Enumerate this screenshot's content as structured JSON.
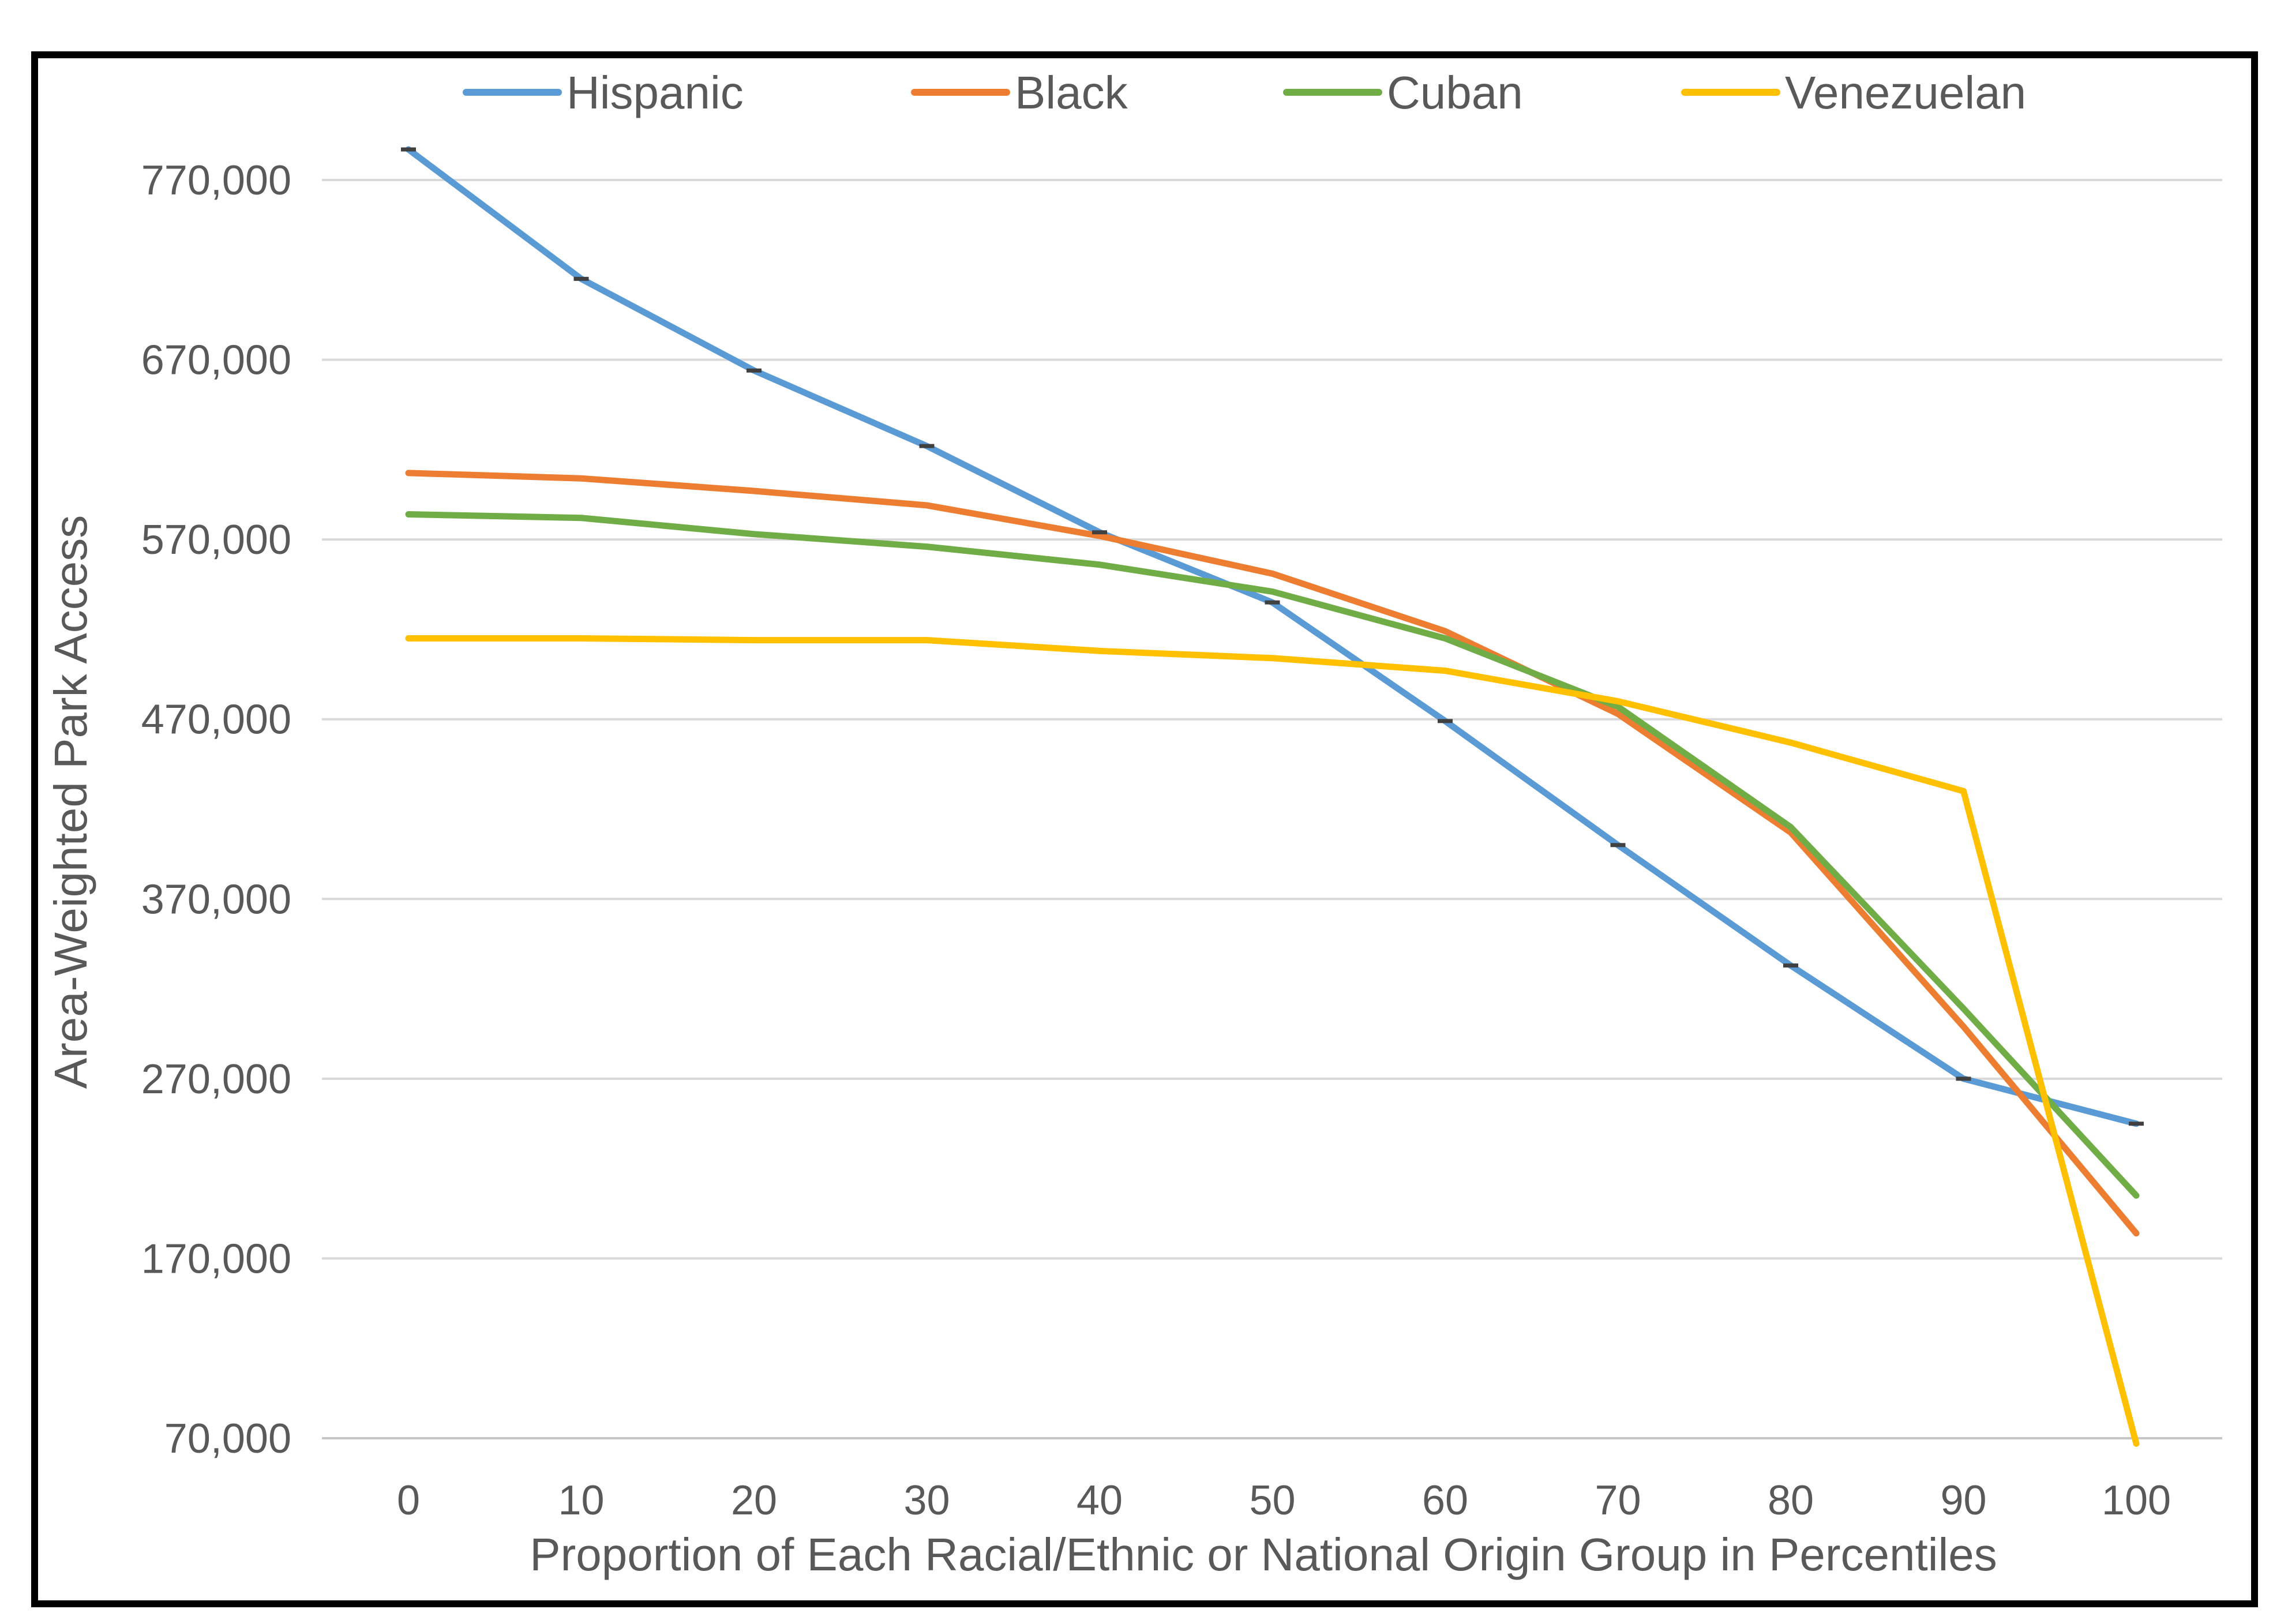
{
  "chart": {
    "frame_color": "#000000",
    "background_color": "#ffffff",
    "text_color": "#595959",
    "gridline_color": "#d9d9d9",
    "axisline_color": "#c6c6c6",
    "marker_color": "#404040"
  },
  "chart_data": {
    "type": "line",
    "title": "",
    "xlabel": "Proportion of Each Racial/Ethnic or National Origin Group in Percentiles",
    "ylabel": "Area-Weighted Park Access",
    "x": [
      0,
      10,
      20,
      30,
      40,
      50,
      60,
      70,
      80,
      90,
      100
    ],
    "xtick_labels": [
      "0",
      "10",
      "20",
      "30",
      "40",
      "50",
      "60",
      "70",
      "80",
      "90",
      "100"
    ],
    "ylim": [
      70000,
      770000
    ],
    "ytick_step": 100000,
    "yticks": [
      70000,
      170000,
      270000,
      370000,
      470000,
      570000,
      670000,
      770000
    ],
    "ytick_labels": [
      "70,000",
      "170,000",
      "270,000",
      "370,000",
      "470,000",
      "570,000",
      "670,000",
      "770,000"
    ],
    "grid": true,
    "legend_position": "top",
    "series": [
      {
        "name": "Hispanic",
        "color": "#5B9BD5",
        "marker": "dash",
        "values": [
          787000,
          715000,
          664000,
          622000,
          574000,
          535000,
          469000,
          400000,
          333000,
          270000,
          245000
        ]
      },
      {
        "name": "Black",
        "color": "#ED7D31",
        "marker": "none",
        "values": [
          607000,
          604000,
          597000,
          589000,
          572000,
          551000,
          519000,
          473000,
          407000,
          299000,
          184000
        ]
      },
      {
        "name": "Cuban",
        "color": "#70AD47",
        "marker": "none",
        "values": [
          584000,
          582000,
          573000,
          566000,
          556000,
          541000,
          515000,
          477000,
          410000,
          309000,
          205000
        ]
      },
      {
        "name": "Venezuelan",
        "color": "#FFC000",
        "marker": "none",
        "values": [
          515000,
          515000,
          514000,
          514000,
          508000,
          504000,
          497000,
          480000,
          457000,
          430000,
          67000
        ]
      }
    ]
  }
}
